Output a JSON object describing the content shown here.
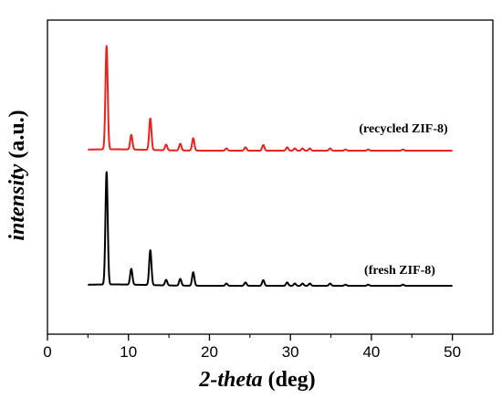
{
  "chart_data": {
    "type": "line",
    "xlabel_italic": "2-theta",
    "xlabel_rest": " (deg)",
    "ylabel_italic": "intensity",
    "ylabel_rest": " (a.u.)",
    "xlim": [
      0,
      55
    ],
    "xticks": [
      "0",
      "10",
      "20",
      "30",
      "40",
      "50"
    ],
    "grid": false,
    "legend": "inline",
    "series": [
      {
        "name": "(recycled ZIF-8)",
        "color": "#e8231f",
        "baseline": 0.5,
        "peaks": [
          {
            "x": 7.3,
            "h": 0.92
          },
          {
            "x": 10.35,
            "h": 0.13
          },
          {
            "x": 12.7,
            "h": 0.28
          },
          {
            "x": 14.65,
            "h": 0.05
          },
          {
            "x": 16.4,
            "h": 0.06
          },
          {
            "x": 18.0,
            "h": 0.11
          },
          {
            "x": 22.1,
            "h": 0.02
          },
          {
            "x": 24.45,
            "h": 0.03
          },
          {
            "x": 26.65,
            "h": 0.05
          },
          {
            "x": 29.6,
            "h": 0.03
          },
          {
            "x": 30.55,
            "h": 0.02
          },
          {
            "x": 31.5,
            "h": 0.02
          },
          {
            "x": 32.4,
            "h": 0.02
          },
          {
            "x": 34.9,
            "h": 0.02
          },
          {
            "x": 36.8,
            "h": 0.01
          },
          {
            "x": 39.6,
            "h": 0.01
          },
          {
            "x": 43.9,
            "h": 0.01
          }
        ]
      },
      {
        "name": "(fresh ZIF-8)",
        "color": "#000000",
        "baseline": 0.0,
        "peaks": [
          {
            "x": 7.3,
            "h": 1.0
          },
          {
            "x": 10.35,
            "h": 0.14
          },
          {
            "x": 12.7,
            "h": 0.31
          },
          {
            "x": 14.65,
            "h": 0.05
          },
          {
            "x": 16.4,
            "h": 0.06
          },
          {
            "x": 18.0,
            "h": 0.12
          },
          {
            "x": 22.1,
            "h": 0.02
          },
          {
            "x": 24.45,
            "h": 0.03
          },
          {
            "x": 26.65,
            "h": 0.05
          },
          {
            "x": 29.6,
            "h": 0.03
          },
          {
            "x": 30.55,
            "h": 0.02
          },
          {
            "x": 31.5,
            "h": 0.02
          },
          {
            "x": 32.4,
            "h": 0.02
          },
          {
            "x": 34.9,
            "h": 0.02
          },
          {
            "x": 36.8,
            "h": 0.01
          },
          {
            "x": 39.6,
            "h": 0.01
          },
          {
            "x": 43.9,
            "h": 0.01
          }
        ]
      }
    ]
  }
}
